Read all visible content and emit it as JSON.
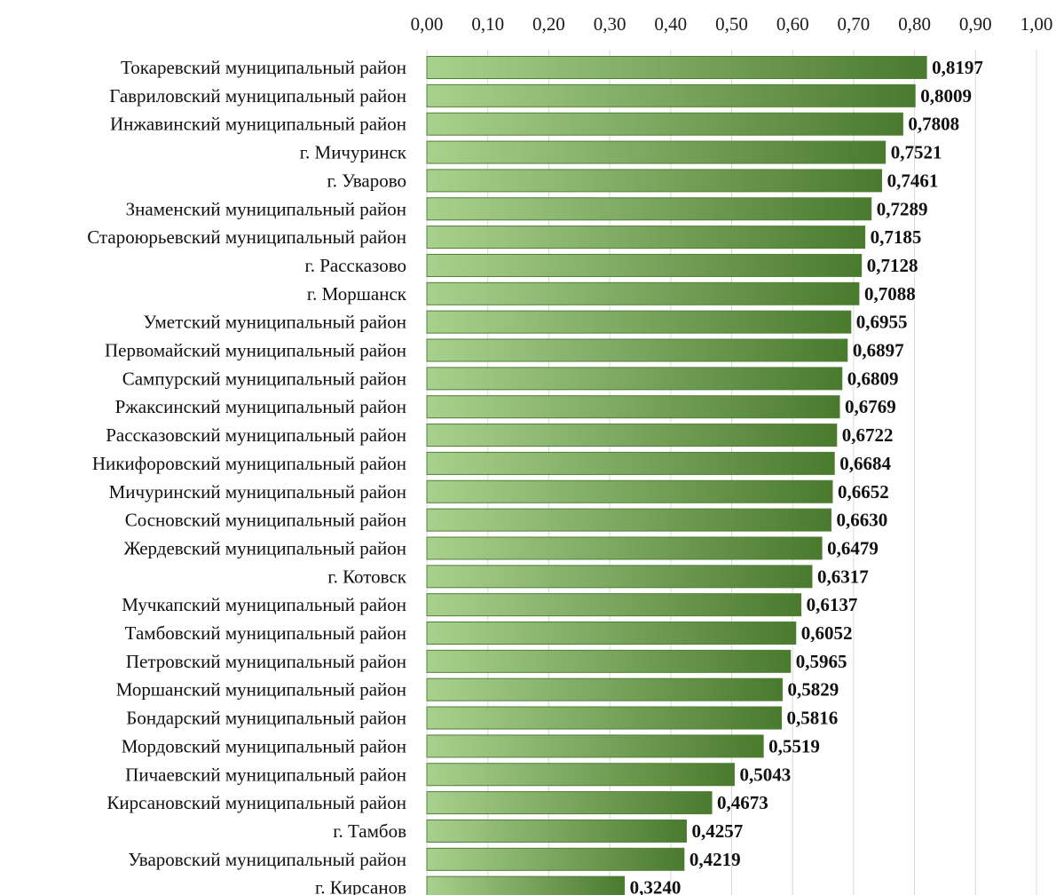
{
  "chart_data": {
    "type": "bar",
    "orientation": "horizontal",
    "title": "",
    "xlabel": "",
    "ylabel": "",
    "xlim": [
      0,
      1
    ],
    "grid": true,
    "axis_position": "top",
    "tick_values": [
      0,
      0.1,
      0.2,
      0.3,
      0.4,
      0.5,
      0.6,
      0.7,
      0.8,
      0.9,
      1.0
    ],
    "tick_labels": [
      "0,00",
      "0,10",
      "0,20",
      "0,30",
      "0,40",
      "0,50",
      "0,60",
      "0,70",
      "0,80",
      "0,90",
      "1,00"
    ],
    "colors": {
      "bar_light": "#a9d18e",
      "bar_dark": "#4a7a2e",
      "grid": "#d9d9d9"
    },
    "categories": [
      "Токаревский муниципальный район",
      "Гавриловский муниципальный район",
      "Инжавинский муниципальный район",
      "г. Мичуринск",
      "г. Уварово",
      "Знаменский муниципальный район",
      "Староюрьевский муниципальный район",
      "г. Рассказово",
      "г. Моршанск",
      "Уметский муниципальный район",
      "Первомайский муниципальный район",
      "Сампурский муниципальный район",
      "Ржаксинский муниципальный район",
      "Рассказовский муниципальный район",
      "Никифоровский муниципальный район",
      "Мичуринский муниципальный район",
      "Сосновский муниципальный район",
      "Жердевский муниципальный район",
      "г. Котовск",
      "Мучкапский муниципальный район",
      "Тамбовский муниципальный район",
      "Петровский муниципальный район",
      "Моршанский муниципальный район",
      "Бондарский муниципальный район",
      "Мордовский муниципальный район",
      "Пичаевский муниципальный район",
      "Кирсановский муниципальный район",
      "г. Тамбов",
      "Уваровский муниципальный район",
      "г. Кирсанов"
    ],
    "values": [
      0.8197,
      0.8009,
      0.7808,
      0.7521,
      0.7461,
      0.7289,
      0.7185,
      0.7128,
      0.7088,
      0.6955,
      0.6897,
      0.6809,
      0.6769,
      0.6722,
      0.6684,
      0.6652,
      0.663,
      0.6479,
      0.6317,
      0.6137,
      0.6052,
      0.5965,
      0.5829,
      0.5816,
      0.5519,
      0.5043,
      0.4673,
      0.4257,
      0.4219,
      0.324
    ],
    "value_labels": [
      "0,8197",
      "0,8009",
      "0,7808",
      "0,7521",
      "0,7461",
      "0,7289",
      "0,7185",
      "0,7128",
      "0,7088",
      "0,6955",
      "0,6897",
      "0,6809",
      "0,6769",
      "0,6722",
      "0,6684",
      "0,6652",
      "0,6630",
      "0,6479",
      "0,6317",
      "0,6137",
      "0,6052",
      "0,5965",
      "0,5829",
      "0,5816",
      "0,5519",
      "0,5043",
      "0,4673",
      "0,4257",
      "0,4219",
      "0,3240"
    ]
  }
}
